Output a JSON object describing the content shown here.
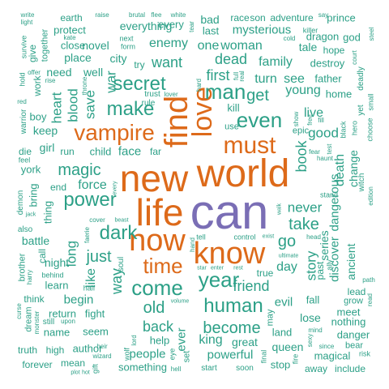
{
  "word_cloud": {
    "colors": {
      "small": "#2ca087",
      "medium": "#dd6a1a",
      "large": "#7a6eb5"
    },
    "words": {
      "can": "can",
      "world": "world",
      "new": "new",
      "life": "life",
      "find": "find",
      "love": "love",
      "know": "know",
      "now": "now",
      "must": "must",
      "vampire": "vampire",
      "time": "time",
      "come": "come",
      "year": "year",
      "power": "power",
      "human": "human",
      "secret": "secret",
      "make": "make",
      "man": "man",
      "even": "even",
      "dark": "dark",
      "magic": "magic",
      "old": "old",
      "become": "become",
      "back": "back",
      "just": "just",
      "like": "like",
      "way": "way",
      "friend": "friend",
      "take": "take",
      "go": "go",
      "story": "story",
      "book": "book",
      "get": "get",
      "first": "first",
      "dead": "dead",
      "want": "want",
      "enemy": "enemy",
      "one": "one",
      "woman": "woman",
      "family": "family",
      "mysterious": "mysterious",
      "everything": "everything",
      "novel": "novel",
      "city": "city",
      "war": "war",
      "save": "save",
      "heart": "heart",
      "blood": "blood",
      "force": "force",
      "never": "never",
      "death": "death",
      "good": "good",
      "live": "live",
      "young": "young",
      "turn": "turn",
      "see": "see",
      "father": "father",
      "home": "home",
      "dragon": "dragon",
      "destroy": "destroy",
      "king": "king",
      "people": "people",
      "ever": "ever",
      "help": "help",
      "powerful": "powerful",
      "queen": "queen",
      "something": "something",
      "begin": "begin",
      "night": "night",
      "long": "long",
      "battle": "battle",
      "learn": "learn",
      "return": "return",
      "name": "name",
      "fight": "fight",
      "seem": "seem",
      "author": "author",
      "high": "high",
      "mean": "mean",
      "forever": "forever",
      "great": "great",
      "stop": "stop",
      "land": "land",
      "lose": "lose",
      "evil": "evil",
      "fall": "fall",
      "meet": "meet",
      "danger": "danger",
      "magical": "magical",
      "nothing": "nothing",
      "away": "away",
      "include": "include",
      "discover": "discover",
      "ancient": "ancient",
      "dangerous": "dangerous",
      "change": "change",
      "series": "series",
      "past": "past",
      "lead": "lead",
      "grow": "grow",
      "day": "day",
      "true": "true",
      "well": "well",
      "need": "need",
      "place": "place",
      "close": "close",
      "protect": "protect",
      "earth": "earth",
      "bad": "bad",
      "last": "last",
      "race": "race",
      "son": "son",
      "adventure": "adventure",
      "prince": "prince",
      "tale": "tale",
      "god": "god",
      "hope": "hope",
      "face": "face",
      "child": "child",
      "run": "run",
      "girl": "girl",
      "keep": "keep",
      "boy": "boy",
      "york": "york",
      "die": "die",
      "bring": "bring",
      "thing": "thing",
      "end": "end",
      "kill": "kill",
      "use": "use",
      "face_far": "far",
      "epic": "epic",
      "work": "work",
      "try": "try",
      "trust": "trust",
      "next": "next",
      "form": "form",
      "every": "every",
      "killer": "killer",
      "witch": "witch",
      "edition": "edition",
      "stand": "stand",
      "tell": "tell",
      "control": "control",
      "hand": "hand",
      "cover": "cover",
      "soul": "soul",
      "half": "half",
      "upon": "upon",
      "still": "still",
      "dream": "dream",
      "think": "think",
      "behind": "behind",
      "harry": "harry",
      "brother": "brother",
      "call": "call",
      "also": "also",
      "demon": "demon",
      "truth": "truth",
      "plot": "plot",
      "hot": "hot",
      "gift": "gift",
      "wizard": "wizard",
      "heir": "heir",
      "lord": "lord",
      "wolf": "wolf",
      "eye": "eye",
      "set": "set",
      "hell": "hell",
      "volume": "volume",
      "start": "start",
      "soon": "soon",
      "final": "final",
      "fire": "fire",
      "may": "may",
      "bear": "bear",
      "risk": "risk",
      "mind": "mind",
      "since": "since",
      "sexy": "sexy",
      "path": "path",
      "read": "read",
      "curse": "curse",
      "monster": "monster",
      "ally": "ally",
      "head": "head",
      "ultimate": "ultimate",
      "exist": "exist",
      "rest": "rest",
      "star": "star",
      "enter": "enter",
      "faerie": "faerie",
      "beast": "beast",
      "jack": "jack",
      "walk": "walk",
      "haunt": "haunt",
      "fear": "fear",
      "test": "test",
      "black": "black",
      "hero": "hero",
      "deadly": "deadly",
      "court": "court",
      "small": "small",
      "steel": "steel",
      "choose": "choose",
      "free": "free",
      "fill": "fill",
      "show": "show",
      "cold": "cold",
      "yet": "yet",
      "hard": "hard",
      "full": "full",
      "real": "real",
      "lover": "lover",
      "throne": "throne",
      "rule": "rule",
      "rise": "rise",
      "offer": "offer",
      "hold": "hold",
      "survive": "survive",
      "give": "give",
      "together": "together",
      "write": "write",
      "light": "light",
      "kate": "kate",
      "brutal": "brutal",
      "flee": "flee",
      "white": "white",
      "tear": "tear",
      "say": "say",
      "raise": "raise",
      "warrior": "warrior",
      "red": "red",
      "feel": "feel",
      "fight_ever": "every"
    }
  }
}
